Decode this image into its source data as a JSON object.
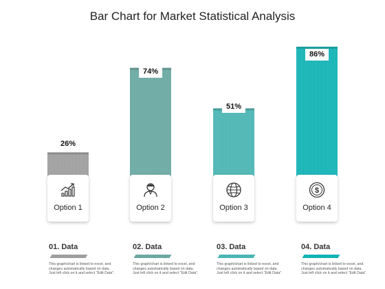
{
  "title": "Bar Chart for Market Statistical Analysis",
  "chart_data": {
    "type": "bar",
    "title": "Bar Chart for Market Statistical Analysis",
    "categories": [
      "Option 1",
      "Option 2",
      "Option 3",
      "Option 4"
    ],
    "values": [
      26,
      74,
      51,
      86
    ],
    "value_labels": [
      "26%",
      "74%",
      "51%",
      "86%"
    ],
    "colors": [
      "#9e9e9e",
      "#6aa8a3",
      "#4ab5b3",
      "#12b3b5"
    ],
    "ylim": [
      0,
      100
    ],
    "grid": false
  },
  "options": [
    {
      "label": "Option 1",
      "pct": "26%",
      "icon": "growth-chart-icon"
    },
    {
      "label": "Option 2",
      "pct": "74%",
      "icon": "user-icon"
    },
    {
      "label": "Option 3",
      "pct": "51%",
      "icon": "globe-icon"
    },
    {
      "label": "Option 4",
      "pct": "86%",
      "icon": "dollar-coin-icon"
    }
  ],
  "data_blocks": [
    {
      "title": "01. Data",
      "text": "This graph/chart is linked to excel, and changes automatically based on data. Just left click on it and select \"Edit Data\".",
      "color": "#9e9e9e"
    },
    {
      "title": "02. Data",
      "text": "This graph/chart is linked to excel, and changes automatically based on data. Just left click on it and select \"Edit Data\".",
      "color": "#6aa8a3"
    },
    {
      "title": "03. Data",
      "text": "This graph/chart is linked to excel, and changes automatically based on data. Just left click on it and select \"Edit Data\".",
      "color": "#4ab5b3"
    },
    {
      "title": "04. Data",
      "text": "This graph/chart is linked to excel, and changes automatically based on data. Just left click on it and select \"Edit Data\".",
      "color": "#12b3b5"
    }
  ]
}
